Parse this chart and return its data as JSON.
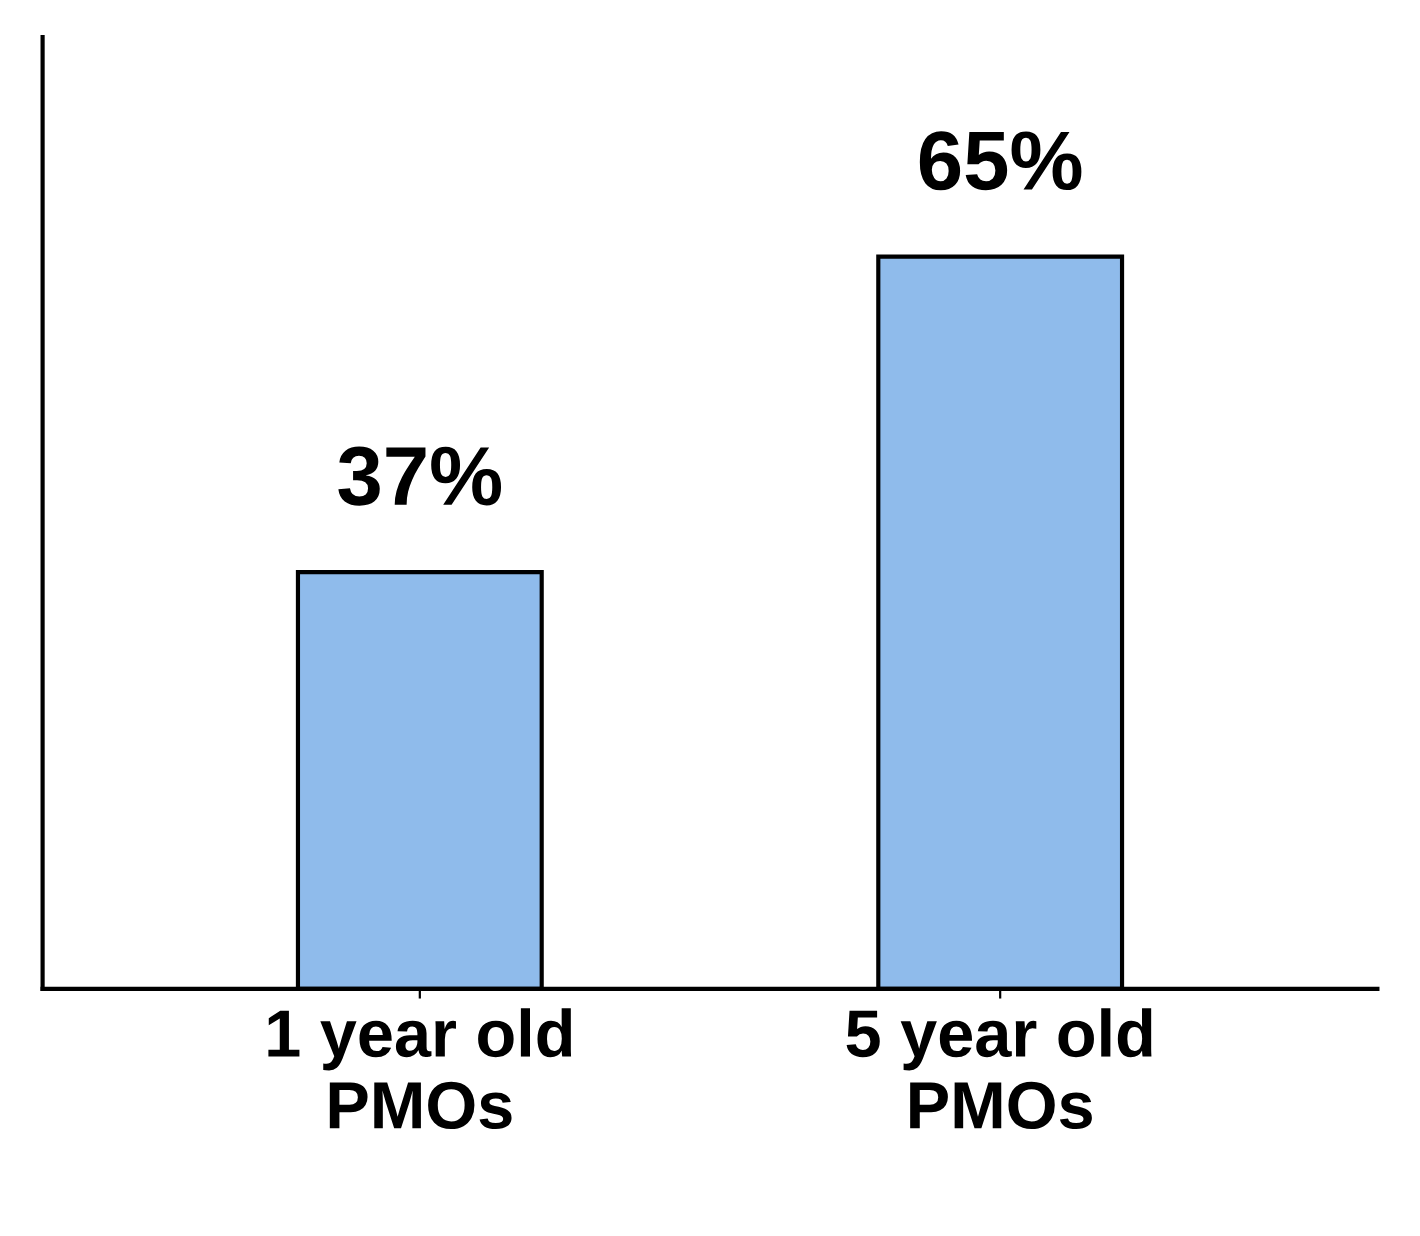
{
  "chart_data": {
    "type": "bar",
    "categories": [
      "1 year old\nPMOs",
      "5 year old\nPMOs"
    ],
    "values": [
      37,
      65
    ],
    "value_labels": [
      "37%",
      "65%"
    ],
    "color": "#8fbbeb",
    "grid": false,
    "legend": false
  }
}
